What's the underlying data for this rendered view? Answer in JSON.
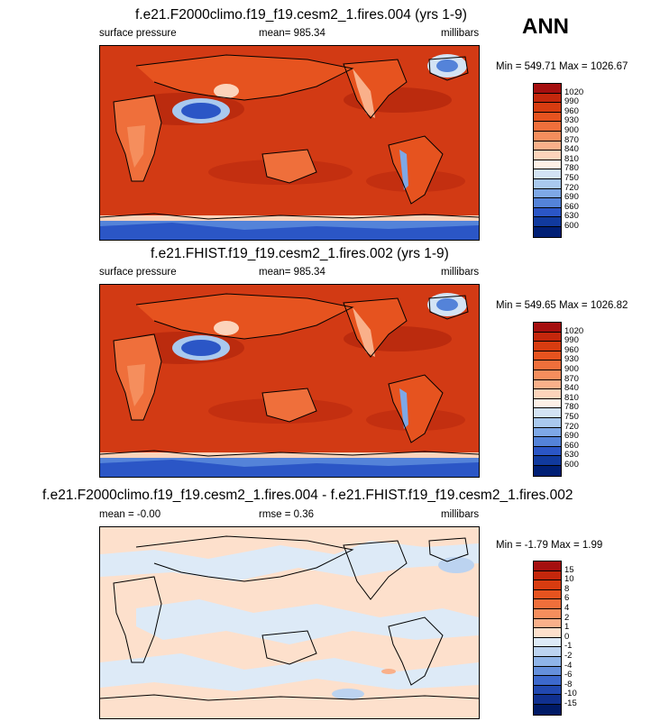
{
  "season": "ANN",
  "panels": [
    {
      "title": "f.e21.F2000climo.f19_f19.cesm2_1.fires.004 (yrs 1-9)",
      "left_label": "surface pressure",
      "center_label": "mean= 985.34",
      "right_label": "millibars",
      "minmax": "Min = 549.71 Max = 1026.67"
    },
    {
      "title": "f.e21.FHIST.f19_f19.cesm2_1.fires.002 (yrs 1-9)",
      "left_label": "surface pressure",
      "center_label": "mean= 985.34",
      "right_label": "millibars",
      "minmax": "Min = 549.65 Max = 1026.82"
    },
    {
      "title": "f.e21.F2000climo.f19_f19.cesm2_1.fires.004 - f.e21.FHIST.f19_f19.cesm2_1.fires.002",
      "left_label": "mean =  -0.00",
      "center_label": "rmse =   0.36",
      "right_label": "millibars",
      "minmax": "Min =  -1.79 Max =   1.99"
    }
  ],
  "colorbars": {
    "pressure": {
      "levels": [
        "1020",
        "990",
        "960",
        "930",
        "900",
        "870",
        "840",
        "810",
        "780",
        "750",
        "720",
        "690",
        "660",
        "630",
        "600"
      ],
      "colors": [
        "#a50f0f",
        "#c4270c",
        "#d73c10",
        "#e6531f",
        "#ef6f3b",
        "#f58e5d",
        "#f9b08a",
        "#fcd4bb",
        "#fdf0e6",
        "#d3e3f4",
        "#a9c9ee",
        "#7ea8e6",
        "#5483d9",
        "#2b56c6",
        "#113a9e",
        "#001f75"
      ]
    },
    "difference": {
      "levels": [
        "15",
        "10",
        "8",
        "6",
        "4",
        "2",
        "1",
        "0",
        "-1",
        "-2",
        "-4",
        "-6",
        "-8",
        "-10",
        "-15"
      ],
      "colors": [
        "#a50f0f",
        "#c4270c",
        "#d73c10",
        "#e6531f",
        "#ef6f3b",
        "#f58e5d",
        "#f9b08a",
        "#fde0cc",
        "#ddeaf7",
        "#bcd3f0",
        "#8fb4e8",
        "#6590dc",
        "#3d69cd",
        "#2148b0",
        "#10308f",
        "#001a66"
      ]
    }
  }
}
